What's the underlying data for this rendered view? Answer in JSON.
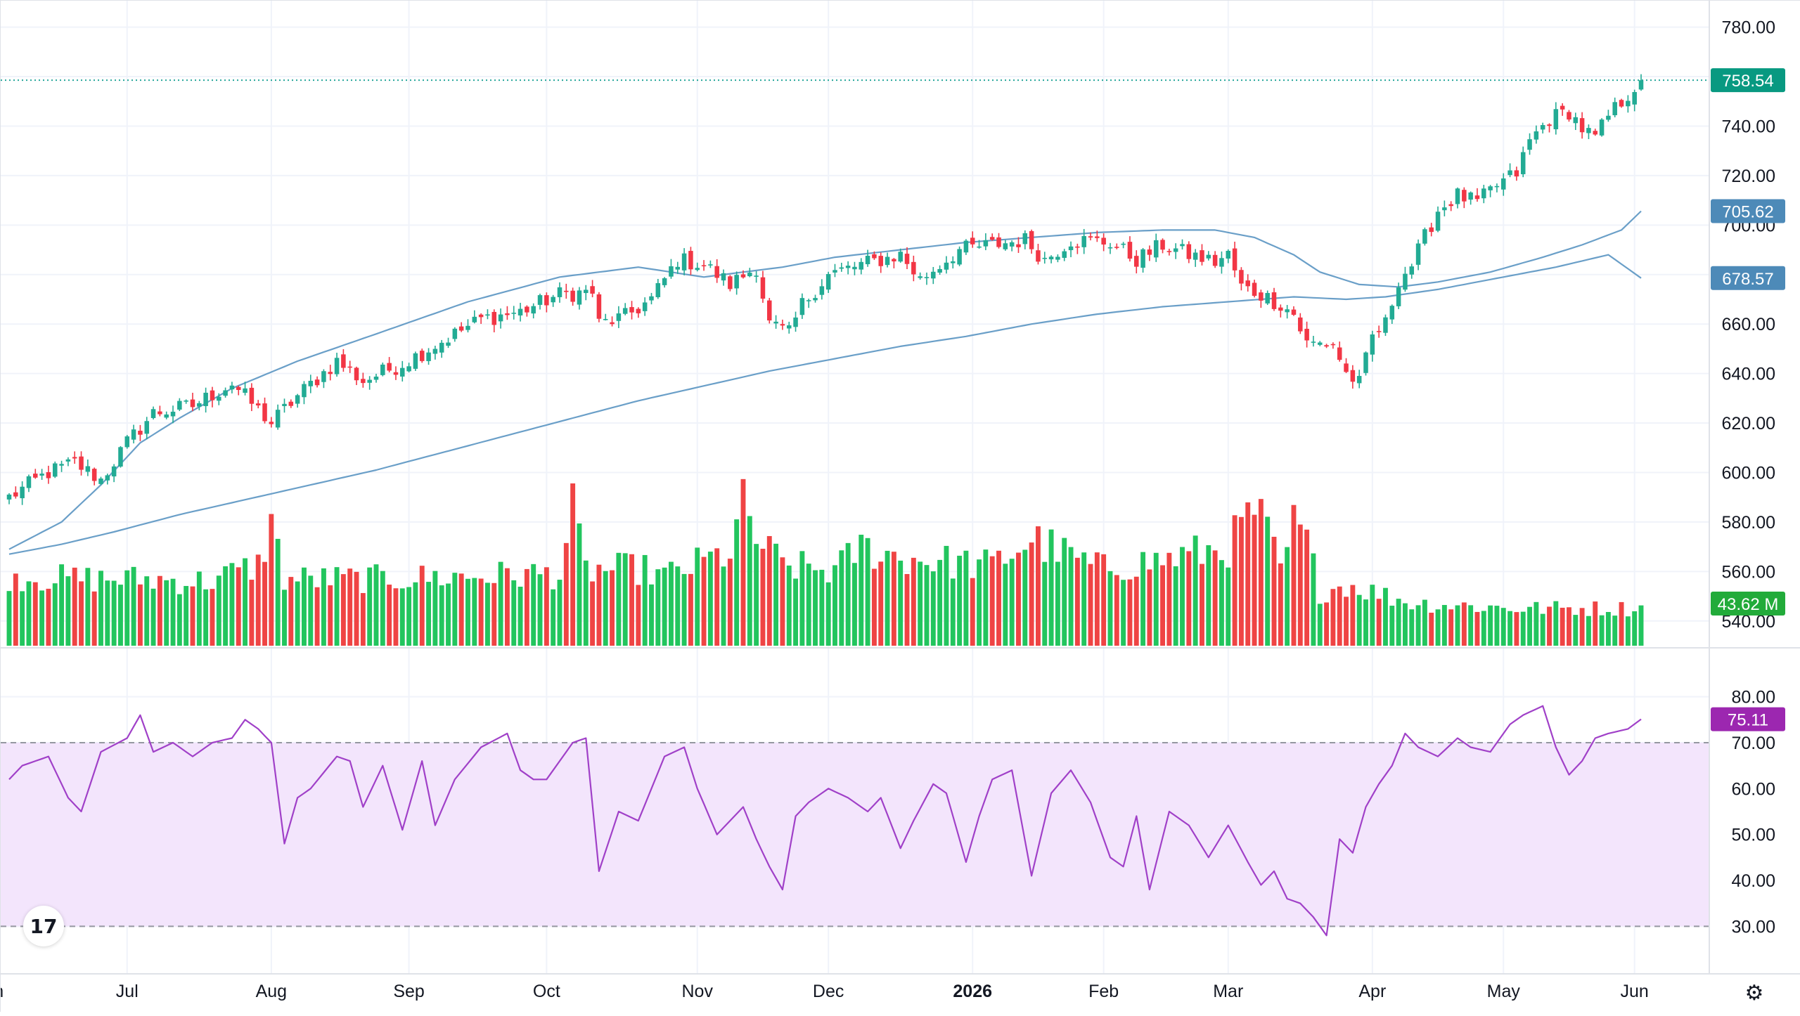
{
  "chart_data": {
    "type": "candlestick",
    "title": "",
    "price_axis": {
      "min": 530,
      "max": 785,
      "ticks": [
        780,
        760,
        740,
        720,
        700,
        680,
        660,
        640,
        620,
        600,
        580,
        560,
        540
      ],
      "tick_labels": [
        "780.00",
        "760.00",
        "740.00",
        "720.00",
        "700.00",
        "680.00",
        "660.00",
        "640.00",
        "620.00",
        "600.00",
        "580.00",
        "560.00",
        "540.00"
      ]
    },
    "rsi_axis": {
      "min": 25,
      "max": 85,
      "ticks": [
        80,
        70,
        60,
        50,
        40,
        30
      ],
      "tick_labels": [
        "80.00",
        "70.00",
        "60.00",
        "50.00",
        "40.00",
        "30.00"
      ],
      "upper_band": 70,
      "lower_band": 30
    },
    "time_axis_labels": [
      {
        "label": "Jun",
        "bar": -3,
        "bold": false
      },
      {
        "label": "Jul",
        "bar": 18,
        "bold": false
      },
      {
        "label": "Aug",
        "bar": 40,
        "bold": false
      },
      {
        "label": "Sep",
        "bar": 61,
        "bold": false
      },
      {
        "label": "Oct",
        "bar": 82,
        "bold": false
      },
      {
        "label": "Nov",
        "bar": 105,
        "bold": false
      },
      {
        "label": "Dec",
        "bar": 125,
        "bold": false
      },
      {
        "label": "2026",
        "bar": 147,
        "bold": true
      },
      {
        "label": "Feb",
        "bar": 167,
        "bold": false
      },
      {
        "label": "Mar",
        "bar": 186,
        "bold": false
      },
      {
        "label": "Apr",
        "bar": 208,
        "bold": false
      },
      {
        "label": "May",
        "bar": 228,
        "bold": false
      },
      {
        "label": "Jun",
        "bar": 248,
        "bold": false
      }
    ],
    "anchors": {
      "close": [
        [
          0,
          590
        ],
        [
          6,
          600
        ],
        [
          10,
          604
        ],
        [
          14,
          597
        ],
        [
          18,
          612
        ],
        [
          22,
          624
        ],
        [
          28,
          627
        ],
        [
          34,
          636
        ],
        [
          40,
          620
        ],
        [
          44,
          631
        ],
        [
          50,
          645
        ],
        [
          54,
          637
        ],
        [
          60,
          644
        ],
        [
          66,
          653
        ],
        [
          72,
          662
        ],
        [
          78,
          665
        ],
        [
          84,
          672
        ],
        [
          89,
          673
        ],
        [
          90,
          660
        ],
        [
          94,
          663
        ],
        [
          98,
          670
        ],
        [
          102,
          686
        ],
        [
          106,
          684
        ],
        [
          110,
          676
        ],
        [
          114,
          683
        ],
        [
          116,
          660
        ],
        [
          119,
          656
        ],
        [
          121,
          668
        ],
        [
          125,
          680
        ],
        [
          130,
          684
        ],
        [
          136,
          688
        ],
        [
          139,
          678
        ],
        [
          145,
          690
        ],
        [
          150,
          692
        ],
        [
          155,
          694
        ],
        [
          158,
          686
        ],
        [
          162,
          694
        ],
        [
          168,
          693
        ],
        [
          172,
          686
        ],
        [
          176,
          692
        ],
        [
          180,
          688
        ],
        [
          184,
          685
        ],
        [
          186,
          688
        ],
        [
          188,
          675
        ],
        [
          191,
          672
        ],
        [
          194,
          668
        ],
        [
          196,
          664
        ],
        [
          198,
          652
        ],
        [
          202,
          652
        ],
        [
          204,
          640
        ],
        [
          206,
          636
        ],
        [
          208,
          655
        ],
        [
          210,
          660
        ],
        [
          212,
          678
        ],
        [
          214,
          684
        ],
        [
          216,
          695
        ],
        [
          218,
          706
        ],
        [
          221,
          712
        ],
        [
          224,
          709
        ],
        [
          227,
          716
        ],
        [
          230,
          721
        ],
        [
          232,
          734
        ],
        [
          235,
          743
        ],
        [
          238,
          746
        ],
        [
          240,
          739
        ],
        [
          242,
          735
        ],
        [
          244,
          744
        ],
        [
          246,
          750
        ],
        [
          249,
          758.54
        ]
      ],
      "rsi": [
        [
          0,
          62
        ],
        [
          2,
          65
        ],
        [
          6,
          67
        ],
        [
          9,
          58
        ],
        [
          11,
          55
        ],
        [
          14,
          68
        ],
        [
          18,
          71
        ],
        [
          20,
          76
        ],
        [
          22,
          68
        ],
        [
          25,
          70
        ],
        [
          28,
          67
        ],
        [
          31,
          70
        ],
        [
          34,
          71
        ],
        [
          36,
          75
        ],
        [
          38,
          73
        ],
        [
          40,
          70
        ],
        [
          42,
          48
        ],
        [
          44,
          58
        ],
        [
          46,
          60
        ],
        [
          50,
          67
        ],
        [
          52,
          66
        ],
        [
          54,
          56
        ],
        [
          57,
          65
        ],
        [
          60,
          51
        ],
        [
          63,
          66
        ],
        [
          65,
          52
        ],
        [
          68,
          62
        ],
        [
          72,
          69
        ],
        [
          76,
          72
        ],
        [
          78,
          64
        ],
        [
          80,
          62
        ],
        [
          82,
          62
        ],
        [
          86,
          70
        ],
        [
          88,
          71
        ],
        [
          90,
          42
        ],
        [
          93,
          55
        ],
        [
          96,
          53
        ],
        [
          100,
          67
        ],
        [
          103,
          69
        ],
        [
          105,
          60
        ],
        [
          108,
          50
        ],
        [
          112,
          56
        ],
        [
          114,
          49
        ],
        [
          116,
          43
        ],
        [
          118,
          38
        ],
        [
          120,
          54
        ],
        [
          122,
          57
        ],
        [
          125,
          60
        ],
        [
          128,
          58
        ],
        [
          131,
          55
        ],
        [
          133,
          58
        ],
        [
          136,
          47
        ],
        [
          138,
          53
        ],
        [
          141,
          61
        ],
        [
          143,
          59
        ],
        [
          146,
          44
        ],
        [
          148,
          54
        ],
        [
          150,
          62
        ],
        [
          153,
          64
        ],
        [
          156,
          41
        ],
        [
          159,
          59
        ],
        [
          162,
          64
        ],
        [
          165,
          57
        ],
        [
          168,
          45
        ],
        [
          170,
          43
        ],
        [
          172,
          54
        ],
        [
          174,
          38
        ],
        [
          177,
          55
        ],
        [
          180,
          52
        ],
        [
          183,
          45
        ],
        [
          186,
          52
        ],
        [
          189,
          44
        ],
        [
          191,
          39
        ],
        [
          193,
          42
        ],
        [
          195,
          36
        ],
        [
          197,
          35
        ],
        [
          199,
          32
        ],
        [
          201,
          28
        ],
        [
          203,
          49
        ],
        [
          205,
          46
        ],
        [
          207,
          56
        ],
        [
          209,
          61
        ],
        [
          211,
          65
        ],
        [
          213,
          72
        ],
        [
          215,
          69
        ],
        [
          218,
          67
        ],
        [
          221,
          71
        ],
        [
          223,
          69
        ],
        [
          226,
          68
        ],
        [
          229,
          74
        ],
        [
          231,
          76
        ],
        [
          234,
          78
        ],
        [
          236,
          69
        ],
        [
          238,
          63
        ],
        [
          240,
          66
        ],
        [
          242,
          71
        ],
        [
          244,
          72
        ],
        [
          247,
          73
        ],
        [
          249,
          75.11
        ]
      ],
      "ma_fast": [
        [
          0,
          569
        ],
        [
          8,
          580
        ],
        [
          14,
          595
        ],
        [
          20,
          612
        ],
        [
          26,
          622
        ],
        [
          34,
          634
        ],
        [
          44,
          645
        ],
        [
          56,
          656
        ],
        [
          70,
          669
        ],
        [
          84,
          679
        ],
        [
          96,
          683
        ],
        [
          106,
          679
        ],
        [
          112,
          681
        ],
        [
          118,
          683
        ],
        [
          126,
          687
        ],
        [
          136,
          690
        ],
        [
          146,
          693
        ],
        [
          156,
          695
        ],
        [
          166,
          697
        ],
        [
          176,
          698
        ],
        [
          184,
          698
        ],
        [
          190,
          695
        ],
        [
          196,
          688
        ],
        [
          200,
          681
        ],
        [
          206,
          676
        ],
        [
          212,
          675
        ],
        [
          218,
          677
        ],
        [
          226,
          681
        ],
        [
          234,
          687
        ],
        [
          240,
          692
        ],
        [
          246,
          698
        ],
        [
          249,
          705.62
        ]
      ],
      "ma_slow": [
        [
          0,
          567
        ],
        [
          8,
          571
        ],
        [
          16,
          576
        ],
        [
          26,
          583
        ],
        [
          36,
          589
        ],
        [
          46,
          595
        ],
        [
          56,
          601
        ],
        [
          66,
          608
        ],
        [
          76,
          615
        ],
        [
          86,
          622
        ],
        [
          96,
          629
        ],
        [
          106,
          635
        ],
        [
          116,
          641
        ],
        [
          126,
          646
        ],
        [
          136,
          651
        ],
        [
          146,
          655
        ],
        [
          156,
          660
        ],
        [
          166,
          664
        ],
        [
          176,
          667
        ],
        [
          186,
          669
        ],
        [
          196,
          671
        ],
        [
          204,
          670
        ],
        [
          210,
          671
        ],
        [
          218,
          674
        ],
        [
          226,
          678
        ],
        [
          236,
          683
        ],
        [
          244,
          688
        ],
        [
          249,
          678.57
        ]
      ],
      "volume": [
        [
          0,
          26
        ],
        [
          10,
          25
        ],
        [
          20,
          25
        ],
        [
          30,
          24
        ],
        [
          38,
          30
        ],
        [
          40,
          46
        ],
        [
          42,
          25
        ],
        [
          56,
          25
        ],
        [
          70,
          26
        ],
        [
          84,
          27
        ],
        [
          86,
          50
        ],
        [
          88,
          28
        ],
        [
          96,
          29
        ],
        [
          100,
          26
        ],
        [
          110,
          35
        ],
        [
          112,
          52
        ],
        [
          114,
          40
        ],
        [
          118,
          30
        ],
        [
          126,
          28
        ],
        [
          130,
          37
        ],
        [
          136,
          33
        ],
        [
          150,
          30
        ],
        [
          156,
          40
        ],
        [
          166,
          29
        ],
        [
          176,
          32
        ],
        [
          186,
          37
        ],
        [
          190,
          51
        ],
        [
          192,
          42
        ],
        [
          194,
          28
        ],
        [
          196,
          45
        ],
        [
          198,
          39
        ],
        [
          200,
          20
        ],
        [
          204,
          23
        ],
        [
          214,
          16
        ],
        [
          230,
          14
        ],
        [
          249,
          14
        ]
      ]
    },
    "series": [
      {
        "name": "",
        "color": "#26a69a",
        "value_label": "758.54"
      },
      {
        "name": "",
        "color": "#4e8db8",
        "value_label": "705.62"
      },
      {
        "name": "",
        "color": "#4e8db8",
        "value_label": "678.57"
      },
      {
        "name": "",
        "color": "#22ab3a",
        "value_label": "43.62 M"
      },
      {
        "name": "",
        "color": "#9c27b0",
        "value_label": "75.11"
      }
    ],
    "colors": {
      "up": "#22ab94",
      "down": "#f23645",
      "vol_up": "#22c55e",
      "vol_down": "#ef4444",
      "ma": "#6a9fc8",
      "rsi": "#a040c8",
      "rsi_band": "#f3e5fc"
    },
    "grid": true
  },
  "icons": {
    "logo": "tradingview-logo-icon",
    "settings": "gear-icon"
  },
  "logo_text": "17"
}
